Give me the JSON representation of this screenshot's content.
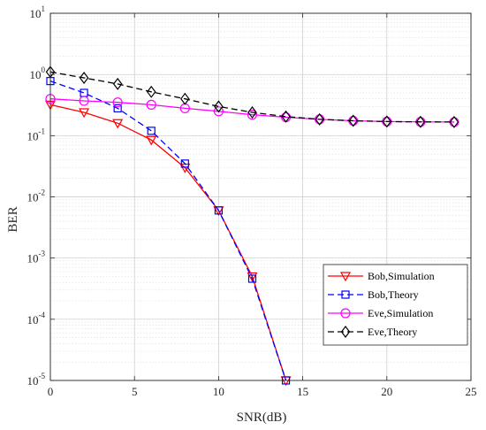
{
  "chart_data": {
    "type": "line",
    "title": "",
    "xlabel": "SNR(dB)",
    "ylabel": "BER",
    "xlim": [
      0,
      25
    ],
    "ylim": [
      1e-05,
      10
    ],
    "yscale": "log",
    "grid": true,
    "minor_grid": true,
    "legend_position": "lower-right",
    "x_ticks": [
      "0",
      "5",
      "10",
      "15",
      "20",
      "25"
    ],
    "y_ticks": [
      {
        "base": "10",
        "exp": "-5"
      },
      {
        "base": "10",
        "exp": "-4"
      },
      {
        "base": "10",
        "exp": "-3"
      },
      {
        "base": "10",
        "exp": "-2"
      },
      {
        "base": "10",
        "exp": "-1"
      },
      {
        "base": "10",
        "exp": "0"
      },
      {
        "base": "10",
        "exp": "1"
      }
    ],
    "series": [
      {
        "name": "Bob,Simulation",
        "color": "#ff0000",
        "dash": "solid",
        "marker": "triangle-down",
        "x": [
          0,
          2,
          4,
          6,
          8,
          10,
          12,
          14
        ],
        "y": [
          0.32,
          0.24,
          0.16,
          0.085,
          0.03,
          0.006,
          0.0005,
          1e-05
        ]
      },
      {
        "name": "Bob,Theory",
        "color": "#0000ff",
        "dash": "dashed",
        "marker": "square",
        "x": [
          0,
          2,
          4,
          6,
          8,
          10,
          12,
          14
        ],
        "y": [
          0.78,
          0.5,
          0.28,
          0.12,
          0.035,
          0.006,
          0.00046,
          1e-05
        ]
      },
      {
        "name": "Eve,Simulation",
        "color": "#ff00ff",
        "dash": "solid",
        "marker": "circle",
        "x": [
          0,
          2,
          4,
          6,
          8,
          10,
          12,
          14,
          16,
          18,
          20,
          22,
          24
        ],
        "y": [
          0.4,
          0.37,
          0.35,
          0.32,
          0.28,
          0.25,
          0.22,
          0.2,
          0.185,
          0.175,
          0.17,
          0.168,
          0.167
        ]
      },
      {
        "name": "Eve,Theory",
        "color": "#000000",
        "dash": "dashed",
        "marker": "diamond",
        "x": [
          0,
          2,
          4,
          6,
          8,
          10,
          12,
          14,
          16,
          18,
          20,
          22,
          24
        ],
        "y": [
          1.1,
          0.88,
          0.7,
          0.52,
          0.4,
          0.3,
          0.24,
          0.205,
          0.185,
          0.175,
          0.17,
          0.168,
          0.167
        ]
      }
    ]
  }
}
